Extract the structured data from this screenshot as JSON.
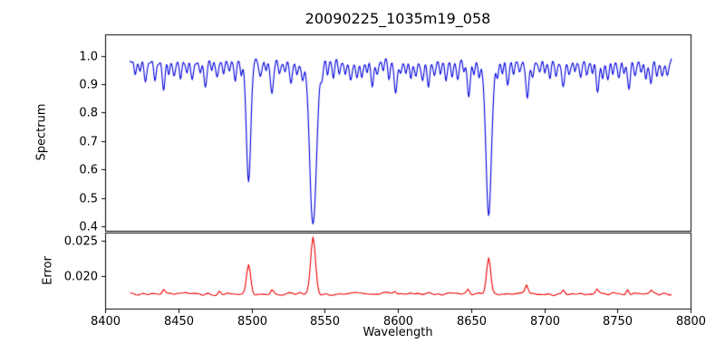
{
  "figure": {
    "title": "20090225_1035m19_058",
    "xlabel": "Wavelength",
    "background": "#ffffff",
    "axis_color": "#000000"
  },
  "xticks": {
    "values": [
      8400,
      8450,
      8500,
      8550,
      8600,
      8650,
      8700,
      8750,
      8800
    ],
    "labels": [
      "8400",
      "8450",
      "8500",
      "8550",
      "8600",
      "8650",
      "8700",
      "8750",
      "8800"
    ]
  },
  "chart_data": [
    {
      "type": "line",
      "panel": "top",
      "name": "spectrum",
      "ylabel": "Spectrum",
      "color": "#0000dd",
      "xlim": [
        8400,
        8800
      ],
      "ylim": [
        0.384,
        1.075
      ],
      "x_start": 8417,
      "x_end": 8787,
      "x_step": 0.5,
      "yticks": {
        "values": [
          1.0,
          0.9,
          0.8,
          0.7,
          0.6,
          0.5,
          0.4
        ],
        "labels": [
          "1.0",
          "0.9",
          "0.8",
          "0.7",
          "0.6",
          "0.5",
          "0.4"
        ]
      },
      "continuum": 0.98,
      "noise_amplitude": 0.02,
      "noise_seed": 20090225,
      "absorption_lines": [
        [
          8498.0,
          0.42,
          1.5
        ],
        [
          8542.1,
          0.575,
          2.3
        ],
        [
          8662.1,
          0.545,
          1.9
        ],
        [
          8420.5,
          0.05,
          0.8
        ],
        [
          8424,
          0.04,
          0.7
        ],
        [
          8427.5,
          0.08,
          0.9
        ],
        [
          8434,
          0.06,
          0.8
        ],
        [
          8440,
          0.1,
          0.9
        ],
        [
          8443.5,
          0.04,
          0.7
        ],
        [
          8447,
          0.05,
          0.8
        ],
        [
          8451.5,
          0.06,
          0.8
        ],
        [
          8456,
          0.04,
          0.7
        ],
        [
          8459.5,
          0.07,
          0.9
        ],
        [
          8465,
          0.05,
          0.8
        ],
        [
          8468.5,
          0.09,
          0.9
        ],
        [
          8473,
          0.04,
          0.7
        ],
        [
          8476.5,
          0.06,
          0.8
        ],
        [
          8481,
          0.05,
          0.8
        ],
        [
          8485,
          0.04,
          0.7
        ],
        [
          8489,
          0.07,
          0.8
        ],
        [
          8493,
          0.05,
          0.7
        ],
        [
          8506,
          0.06,
          0.8
        ],
        [
          8510,
          0.04,
          0.7
        ],
        [
          8514,
          0.11,
          1.0
        ],
        [
          8519,
          0.05,
          0.8
        ],
        [
          8523,
          0.04,
          0.7
        ],
        [
          8527,
          0.08,
          0.9
        ],
        [
          8531,
          0.05,
          0.8
        ],
        [
          8535,
          0.06,
          0.8
        ],
        [
          8548,
          0.05,
          0.8
        ],
        [
          8552,
          0.04,
          0.7
        ],
        [
          8556,
          0.06,
          0.8
        ],
        [
          8560,
          0.05,
          0.8
        ],
        [
          8564,
          0.04,
          0.7
        ],
        [
          8568,
          0.07,
          0.9
        ],
        [
          8572,
          0.05,
          0.8
        ],
        [
          8575.5,
          0.06,
          0.8
        ],
        [
          8579,
          0.04,
          0.7
        ],
        [
          8582.5,
          0.09,
          0.9
        ],
        [
          8586,
          0.05,
          0.8
        ],
        [
          8590,
          0.04,
          0.7
        ],
        [
          8594,
          0.06,
          0.8
        ],
        [
          8598.5,
          0.11,
          1.0
        ],
        [
          8602,
          0.05,
          0.8
        ],
        [
          8605.5,
          0.04,
          0.7
        ],
        [
          8609,
          0.06,
          0.8
        ],
        [
          8612.5,
          0.05,
          0.8
        ],
        [
          8617,
          0.07,
          0.9
        ],
        [
          8621,
          0.09,
          0.9
        ],
        [
          8625,
          0.05,
          0.8
        ],
        [
          8629,
          0.04,
          0.7
        ],
        [
          8633,
          0.06,
          0.8
        ],
        [
          8637,
          0.05,
          0.8
        ],
        [
          8641,
          0.07,
          0.9
        ],
        [
          8645,
          0.04,
          0.7
        ],
        [
          8648.5,
          0.12,
          1.0
        ],
        [
          8652,
          0.05,
          0.8
        ],
        [
          8655.5,
          0.06,
          0.8
        ],
        [
          8668,
          0.05,
          0.8
        ],
        [
          8671.5,
          0.04,
          0.7
        ],
        [
          8675,
          0.08,
          0.9
        ],
        [
          8679,
          0.05,
          0.8
        ],
        [
          8683,
          0.04,
          0.7
        ],
        [
          8688.5,
          0.13,
          1.0
        ],
        [
          8692,
          0.06,
          0.8
        ],
        [
          8697,
          0.05,
          0.8
        ],
        [
          8700.5,
          0.04,
          0.7
        ],
        [
          8704,
          0.06,
          0.8
        ],
        [
          8708,
          0.05,
          0.8
        ],
        [
          8713,
          0.1,
          1.0
        ],
        [
          8717,
          0.05,
          0.8
        ],
        [
          8721,
          0.04,
          0.7
        ],
        [
          8725,
          0.06,
          0.8
        ],
        [
          8729,
          0.05,
          0.8
        ],
        [
          8733,
          0.04,
          0.7
        ],
        [
          8736.5,
          0.12,
          1.0
        ],
        [
          8740,
          0.06,
          0.8
        ],
        [
          8743.5,
          0.07,
          0.9
        ],
        [
          8747,
          0.04,
          0.7
        ],
        [
          8751,
          0.05,
          0.8
        ],
        [
          8754.5,
          0.04,
          0.7
        ],
        [
          8758,
          0.1,
          0.9
        ],
        [
          8762,
          0.05,
          0.8
        ],
        [
          8766,
          0.04,
          0.7
        ],
        [
          8769.5,
          0.06,
          0.8
        ],
        [
          8773,
          0.08,
          0.9
        ],
        [
          8777,
          0.04,
          0.7
        ],
        [
          8780.5,
          0.05,
          0.8
        ],
        [
          8784,
          0.06,
          0.8
        ]
      ]
    },
    {
      "type": "line",
      "panel": "bottom",
      "name": "error",
      "ylabel": "Error",
      "color": "#ee0000",
      "xlim": [
        8400,
        8800
      ],
      "ylim": [
        0.0153,
        0.0262
      ],
      "x_start": 8417,
      "x_end": 8787,
      "x_step": 1,
      "yticks": {
        "values": [
          0.025,
          0.02
        ],
        "labels": [
          "0.025",
          "0.020"
        ]
      },
      "baseline": 0.0174,
      "noise_amplitude": 0.00035,
      "noise_seed": 1035,
      "emission_peaks": [
        [
          8498.0,
          0.0042,
          1.4
        ],
        [
          8542.1,
          0.0082,
          1.6
        ],
        [
          8662.1,
          0.0052,
          1.4
        ],
        [
          8440,
          0.0007,
          1.0
        ],
        [
          8478,
          0.0005,
          0.9
        ],
        [
          8514,
          0.0006,
          0.9
        ],
        [
          8598,
          0.0005,
          0.9
        ],
        [
          8648,
          0.0006,
          0.9
        ],
        [
          8688,
          0.0013,
          1.0
        ],
        [
          8713,
          0.0006,
          0.9
        ],
        [
          8736,
          0.0007,
          0.9
        ],
        [
          8757,
          0.0009,
          0.9
        ],
        [
          8773,
          0.0005,
          0.9
        ]
      ]
    }
  ]
}
